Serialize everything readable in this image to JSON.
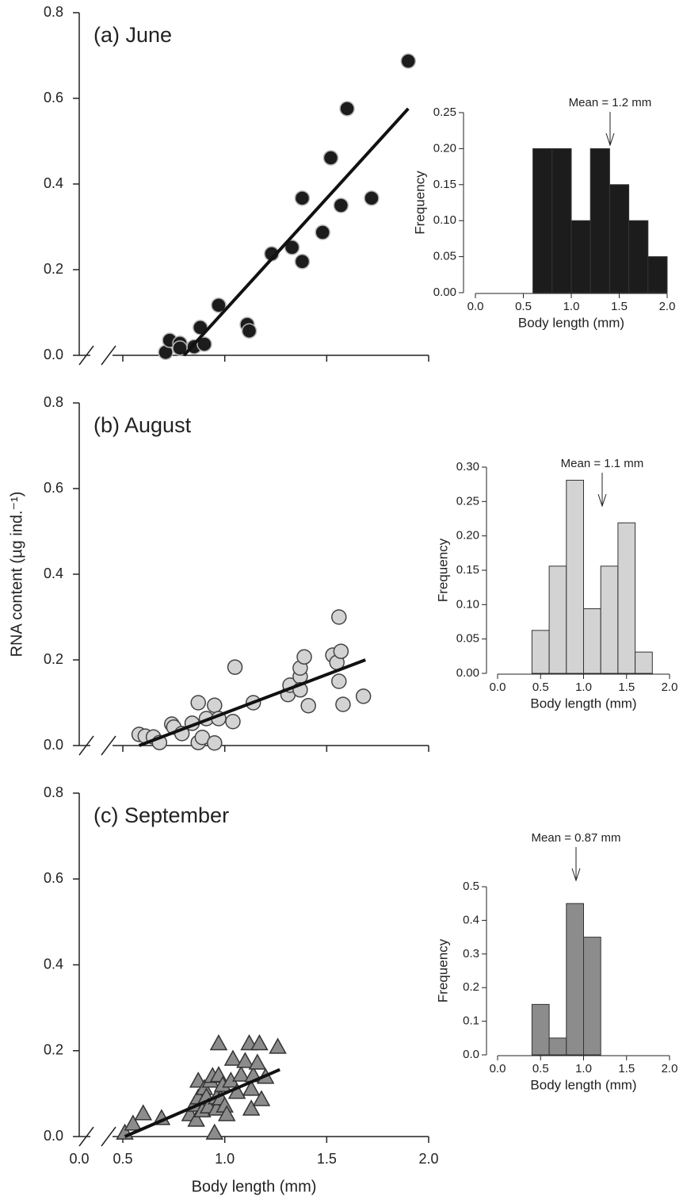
{
  "chart_data": [
    {
      "type": "scatter",
      "title": "(a) June",
      "marker": "circle",
      "color": "#1c1c1c",
      "edge": "#b5b5b5",
      "x": [
        0.71,
        0.73,
        0.78,
        0.78,
        0.85,
        0.88,
        0.9,
        0.97,
        1.11,
        1.12,
        1.23,
        1.33,
        1.38,
        1.38,
        1.48,
        1.52,
        1.57,
        1.6,
        1.72,
        1.9
      ],
      "values": [
        0.007,
        0.035,
        0.028,
        0.017,
        0.02,
        0.065,
        0.026,
        0.117,
        0.072,
        0.057,
        0.237,
        0.252,
        0.367,
        0.219,
        0.287,
        0.461,
        0.35,
        0.576,
        0.367,
        0.687
      ],
      "fit": {
        "x": [
          0.8,
          1.9
        ],
        "values": [
          0,
          0.576
        ]
      },
      "xlim": [
        0,
        2.0
      ],
      "x_axis_break": true,
      "ylim": [
        0,
        0.8
      ],
      "yticks": [
        {
          "value": 0,
          "label": "0.0"
        },
        0.2,
        0.4,
        0.6,
        0.8
      ]
    },
    {
      "type": "histogram",
      "color": "#1c1c1c",
      "annotation": "Mean = 1.2 mm",
      "x_label": "Body length (mm)",
      "y_label": "Frequency",
      "bins": [
        0.6,
        0.8,
        1.0,
        1.2,
        1.4,
        1.6,
        1.8,
        2.0
      ],
      "values": [
        0.2,
        0.2,
        0.1,
        0.2,
        0.15,
        0.1,
        0.05
      ],
      "xlim": [
        0,
        2.0
      ],
      "xticks": [
        {
          "value": 0,
          "label": "0.0"
        },
        0.5,
        {
          "value": 1,
          "label": "1.0"
        },
        1.5,
        {
          "value": 2,
          "label": "2.0"
        }
      ],
      "ylim": [
        0,
        0.25
      ],
      "yticks": [
        {
          "value": 0,
          "label": "0.00"
        },
        0.05,
        {
          "value": 0.1,
          "label": "0.10"
        },
        0.15,
        {
          "value": 0.2,
          "label": "0.20"
        },
        0.25
      ]
    },
    {
      "type": "scatter",
      "title": "(b) August",
      "marker": "circle",
      "color": "#d3d3d3",
      "edge": "#444444",
      "y_label": "RNA content (µg ind.⁻¹)",
      "x": [
        0.58,
        0.61,
        0.65,
        0.68,
        0.74,
        0.75,
        0.79,
        0.84,
        0.87,
        0.87,
        0.89,
        0.91,
        0.95,
        0.95,
        0.97,
        1.04,
        1.05,
        1.14,
        1.31,
        1.32,
        1.37,
        1.37,
        1.37,
        1.39,
        1.41,
        1.53,
        1.56,
        1.55,
        1.57,
        1.56,
        1.58,
        1.68
      ],
      "values": [
        0.026,
        0.022,
        0.02,
        0.007,
        0.05,
        0.043,
        0.028,
        0.052,
        0.1,
        0.007,
        0.019,
        0.063,
        0.094,
        0.006,
        0.063,
        0.056,
        0.183,
        0.1,
        0.119,
        0.141,
        0.161,
        0.181,
        0.13,
        0.207,
        0.093,
        0.211,
        0.3,
        0.194,
        0.22,
        0.15,
        0.096,
        0.115
      ],
      "fit": {
        "x": [
          0.58,
          1.69
        ],
        "values": [
          0,
          0.2
        ]
      },
      "xlim": [
        0,
        2.0
      ],
      "x_axis_break": true,
      "ylim": [
        0,
        0.8
      ],
      "yticks": [
        {
          "value": 0,
          "label": "0.0"
        },
        0.2,
        0.4,
        0.6,
        0.8
      ]
    },
    {
      "type": "histogram",
      "color": "#d3d3d3",
      "annotation": "Mean = 1.1 mm",
      "x_label": "Body length (mm)",
      "y_label": "Frequency",
      "bins": [
        0.4,
        0.6,
        0.8,
        1.0,
        1.2,
        1.4,
        1.6,
        1.8
      ],
      "values": [
        0.0625,
        0.156,
        0.281,
        0.094,
        0.156,
        0.219,
        0.031
      ],
      "xlim": [
        0,
        2.0
      ],
      "xticks": [
        {
          "value": 0,
          "label": "0.0"
        },
        0.5,
        {
          "value": 1,
          "label": "1.0"
        },
        1.5,
        {
          "value": 2,
          "label": "2.0"
        }
      ],
      "ylim": [
        0,
        0.3
      ],
      "yticks": [
        {
          "value": 0,
          "label": "0.00"
        },
        0.05,
        {
          "value": 0.1,
          "label": "0.10"
        },
        0.15,
        {
          "value": 0.2,
          "label": "0.20"
        },
        0.25,
        {
          "value": 0.3,
          "label": "0.30"
        }
      ]
    },
    {
      "type": "scatter",
      "title": "(c) September",
      "marker": "triangle",
      "color": "#8c8c8c",
      "edge": "#333333",
      "x_label": "Body length (mm)",
      "x": [
        0.51,
        0.55,
        0.6,
        0.69,
        0.83,
        0.85,
        0.86,
        0.87,
        0.87,
        0.89,
        0.9,
        0.91,
        0.92,
        0.93,
        0.94,
        0.95,
        0.96,
        0.96,
        0.97,
        0.98,
        0.97,
        0.99,
        1.0,
        1.01,
        1.03,
        1.04,
        1.06,
        1.08,
        1.1,
        1.12,
        1.13,
        1.13,
        1.14,
        1.16,
        1.17,
        1.18,
        1.2,
        1.26
      ],
      "values": [
        0.009,
        0.03,
        0.054,
        0.043,
        0.052,
        0.074,
        0.039,
        0.091,
        0.13,
        0.061,
        0.113,
        0.093,
        0.07,
        0.13,
        0.141,
        0.009,
        0.091,
        0.065,
        0.143,
        0.089,
        0.217,
        0.12,
        0.072,
        0.052,
        0.13,
        0.181,
        0.104,
        0.144,
        0.176,
        0.217,
        0.065,
        0.111,
        0.143,
        0.172,
        0.217,
        0.087,
        0.139,
        0.209
      ],
      "fit": {
        "x": [
          0.51,
          1.27
        ],
        "values": [
          0,
          0.156
        ]
      },
      "xlim": [
        0,
        2.0
      ],
      "x_axis_break": true,
      "xticks": [
        {
          "value": 0,
          "label": "0.0"
        },
        0.5,
        {
          "value": 1,
          "label": "1.0"
        },
        1.5,
        {
          "value": 2,
          "label": "2.0"
        }
      ],
      "ylim": [
        0,
        0.8
      ],
      "yticks": [
        {
          "value": 0,
          "label": "0.0"
        },
        0.2,
        0.4,
        0.6,
        0.8
      ]
    },
    {
      "type": "histogram",
      "color": "#8c8c8c",
      "annotation": "Mean = 0.87 mm",
      "x_label": "Body length (mm)",
      "y_label": "Frequency",
      "bins": [
        0.4,
        0.6,
        0.8,
        1.0,
        1.2
      ],
      "values": [
        0.15,
        0.05,
        0.45,
        0.35
      ],
      "xlim": [
        0,
        2.0
      ],
      "xticks": [
        {
          "value": 0,
          "label": "0.0"
        },
        0.5,
        {
          "value": 1,
          "label": "1.0"
        },
        1.5,
        {
          "value": 2,
          "label": "2.0"
        }
      ],
      "ylim": [
        0,
        0.5
      ],
      "yticks": [
        {
          "value": 0,
          "label": "0.0"
        },
        0.1,
        0.2,
        0.3,
        0.4,
        0.5
      ]
    }
  ]
}
